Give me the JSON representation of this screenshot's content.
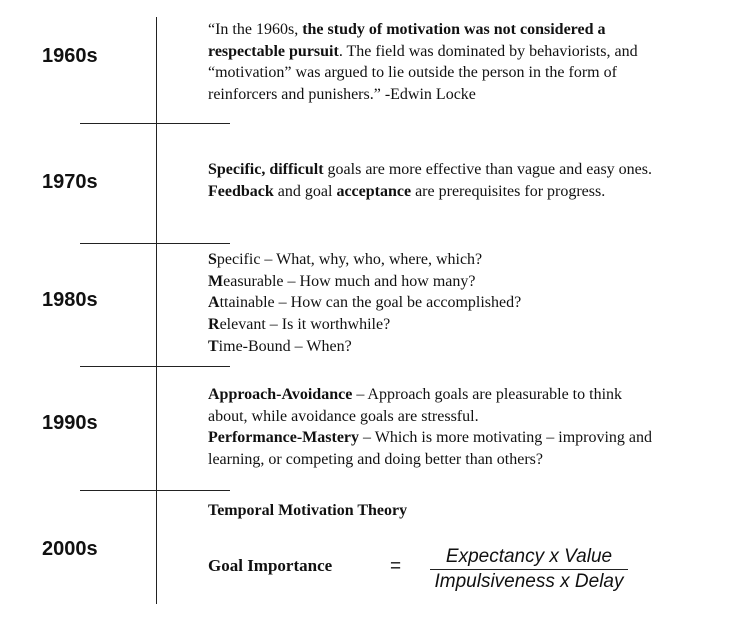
{
  "timeline": [
    {
      "decade": "1960s",
      "lines": [
        [
          {
            "t": "“In the 1960s, "
          },
          {
            "t": "the study of motivation was not considered a",
            "b": true
          }
        ],
        [
          {
            "t": "respectable pursuit",
            "b": true
          },
          {
            "t": ". The field was dominated by behaviorists, and"
          }
        ],
        [
          {
            "t": "“motivation” was argued to lie outside the person in the form of"
          }
        ],
        [
          {
            "t": "reinforcers and punishers.” -Edwin Locke"
          }
        ]
      ]
    },
    {
      "decade": "1970s",
      "lines": [
        [
          {
            "t": "Specific, difficult",
            "b": true
          },
          {
            "t": " goals are more effective than vague and easy ones."
          }
        ],
        [
          {
            "t": "Feedback",
            "b": true
          },
          {
            "t": " and goal "
          },
          {
            "t": "acceptance",
            "b": true
          },
          {
            "t": " are prerequisites for progress."
          }
        ]
      ]
    },
    {
      "decade": "1980s",
      "lines": [
        [
          {
            "t": "S",
            "b": true
          },
          {
            "t": "pecific – What, why, who, where, which?"
          }
        ],
        [
          {
            "t": "M",
            "b": true
          },
          {
            "t": "easurable – How much and how many?"
          }
        ],
        [
          {
            "t": "A",
            "b": true
          },
          {
            "t": "ttainable – How can the goal be accomplished?"
          }
        ],
        [
          {
            "t": "R",
            "b": true
          },
          {
            "t": "elevant – Is it worthwhile?"
          }
        ],
        [
          {
            "t": "T",
            "b": true
          },
          {
            "t": "ime-Bound – When?"
          }
        ]
      ]
    },
    {
      "decade": "1990s",
      "lines": [
        [
          {
            "t": "Approach-Avoidance",
            "b": true
          },
          {
            "t": " – Approach goals are pleasurable to think"
          }
        ],
        [
          {
            "t": "about, while avoidance goals are stressful."
          }
        ],
        [
          {
            "t": "Performance-Mastery",
            "b": true
          },
          {
            "t": " – Which is more motivating – improving and"
          }
        ],
        [
          {
            "t": "learning, or competing and doing better than others?"
          }
        ]
      ]
    },
    {
      "decade": "2000s",
      "lines": [
        [
          {
            "t": "Temporal Motivation Theory",
            "b": true
          }
        ]
      ]
    }
  ],
  "formula": {
    "lhs": "Goal Importance",
    "equals": "=",
    "numerator": "Expectancy x Value",
    "denominator": "Impulsiveness x Delay"
  }
}
